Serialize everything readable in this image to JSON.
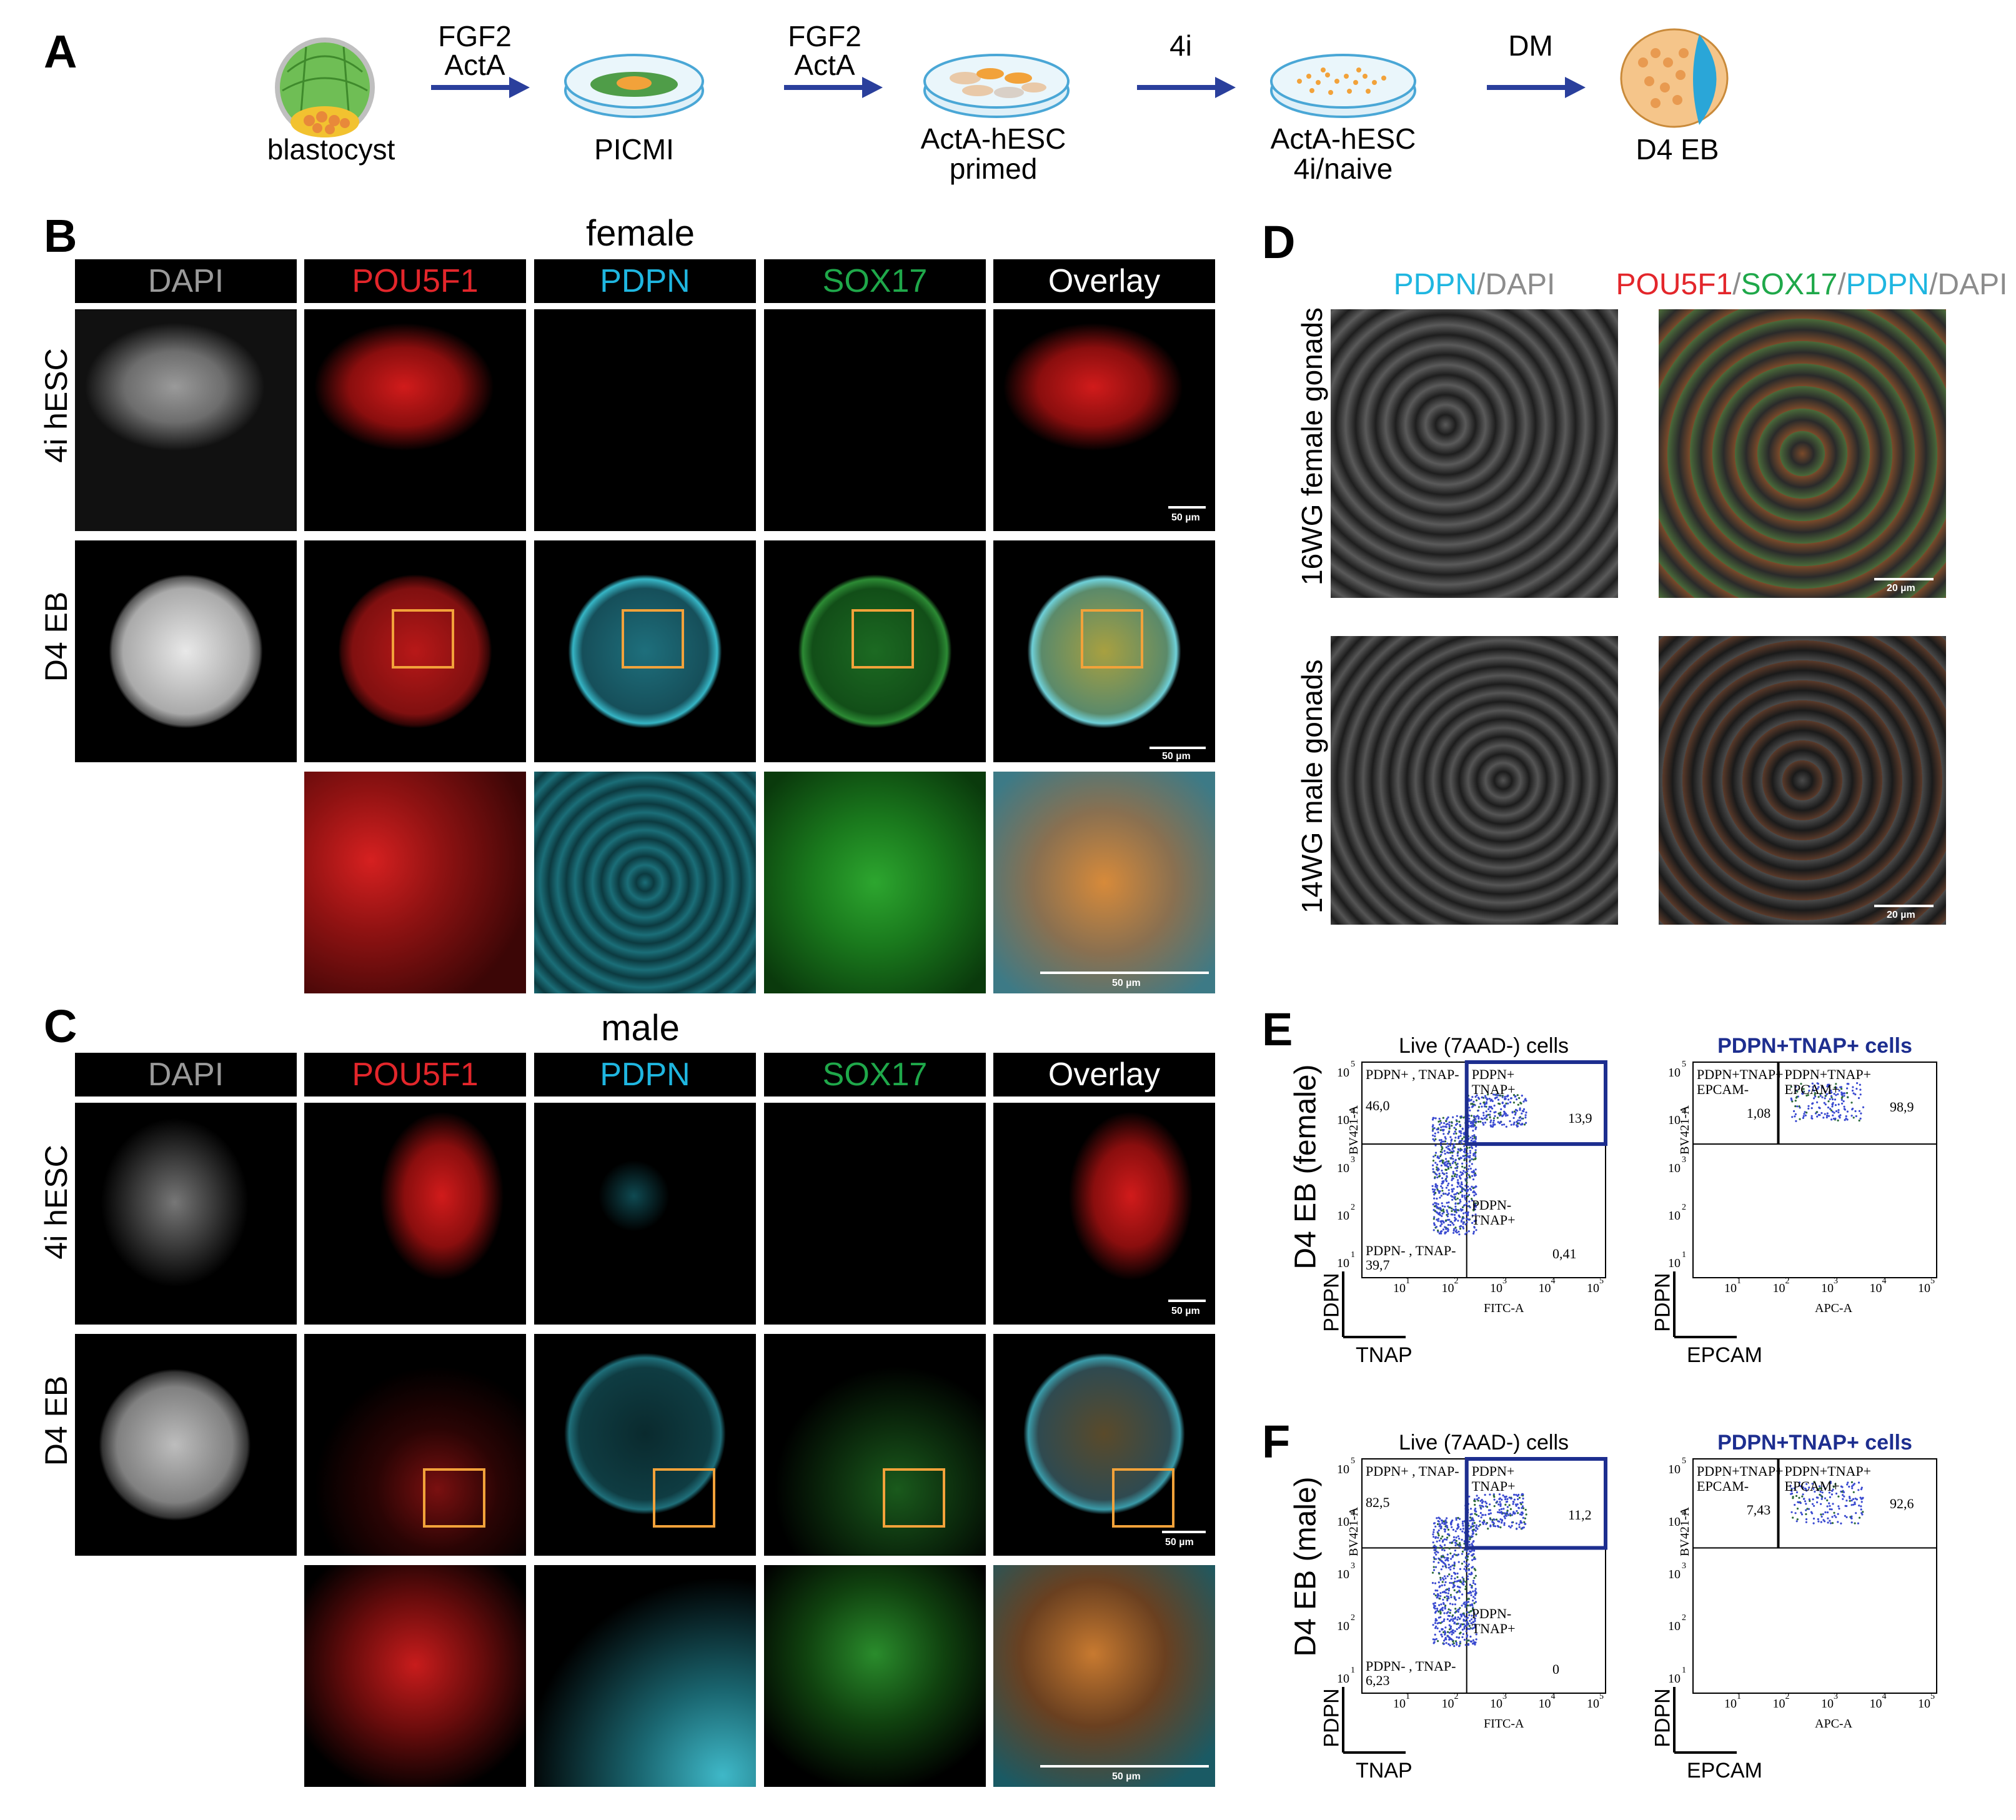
{
  "panel_letters": {
    "a": "A",
    "b": "B",
    "c": "C",
    "d": "D",
    "e": "E",
    "f": "F"
  },
  "panelA": {
    "steps": [
      "blastocyst",
      "PICMI",
      "ActA-hESC\nprimed",
      "ActA-hESC\n4i/naive",
      "D4 EB"
    ],
    "arrows": [
      "FGF2\nActA",
      "FGF2\nActA",
      "4i",
      "DM"
    ]
  },
  "panelB": {
    "title": "female",
    "columns": [
      "DAPI",
      "POU5F1",
      "PDPN",
      "SOX17",
      "Overlay"
    ],
    "rows": [
      "4i hESC",
      "D4 EB"
    ],
    "scale": "50 µm"
  },
  "panelC": {
    "title": "male",
    "columns": [
      "DAPI",
      "POU5F1",
      "PDPN",
      "SOX17",
      "Overlay"
    ],
    "rows": [
      "4i hESC",
      "D4 EB"
    ],
    "scale": "50 µm"
  },
  "panelD": {
    "col1": [
      {
        "t": "PDPN",
        "c": "#1fb6e0"
      },
      {
        "t": "/",
        "c": "#8c8c8c"
      },
      {
        "t": "DAPI",
        "c": "#8c8c8c"
      }
    ],
    "col2": [
      {
        "t": "POU5F1",
        "c": "#e3262b"
      },
      {
        "t": "/",
        "c": "#8c8c8c"
      },
      {
        "t": "SOX17",
        "c": "#1fa84a"
      },
      {
        "t": "/",
        "c": "#8c8c8c"
      },
      {
        "t": "PDPN",
        "c": "#1fb6e0"
      },
      {
        "t": "/",
        "c": "#8c8c8c"
      },
      {
        "t": "DAPI",
        "c": "#8c8c8c"
      }
    ],
    "rows": [
      "16WG female gonads",
      "14WG male gonads"
    ],
    "scale": "20 µm"
  },
  "panelE": {
    "row_label": "D4 EB (female)",
    "plot1": {
      "title": "Live (7AAD-) cells",
      "ylabel": "PDPN",
      "xlabel": "TNAP",
      "yaxis": "BV421-A",
      "xaxis": "FITC-A",
      "q_ul": "PDPN+ , TNAP-",
      "v_ul": "46,0",
      "q_ur": "PDPN+\nTNAP+",
      "v_ur": "13,9",
      "q_ll": "PDPN- , TNAP-",
      "v_ll": "39,7",
      "q_lr": "PDPN-\nTNAP+",
      "v_lr": "0,41"
    },
    "plot2": {
      "title": "PDPN+TNAP+ cells",
      "ylabel": "PDPN",
      "xlabel": "EPCAM",
      "yaxis": "BV421-A",
      "xaxis": "APC-A",
      "q_l": "PDPN+TNAP+\nEPCAM-",
      "v_l": "1,08",
      "q_r": "PDPN+TNAP+\nEPCAM+",
      "v_r": "98,9"
    }
  },
  "panelF": {
    "row_label": "D4 EB (male)",
    "plot1": {
      "title": "Live (7AAD-) cells",
      "ylabel": "PDPN",
      "xlabel": "TNAP",
      "yaxis": "BV421-A",
      "xaxis": "FITC-A",
      "q_ul": "PDPN+ , TNAP-",
      "v_ul": "82,5",
      "q_ur": "PDPN+\nTNAP+",
      "v_ur": "11,2",
      "q_ll": "PDPN- , TNAP-",
      "v_ll": "6,23",
      "q_lr": "PDPN-\nTNAP+",
      "v_lr": "0"
    },
    "plot2": {
      "title": "PDPN+TNAP+ cells",
      "ylabel": "PDPN",
      "xlabel": "EPCAM",
      "yaxis": "BV421-A",
      "xaxis": "APC-A",
      "q_l": "PDPN+TNAP+\nEPCAM-",
      "v_l": "7,43",
      "q_r": "PDPN+TNAP+\nEPCAM+",
      "v_r": "92,6"
    }
  },
  "ticks": [
    "10",
    "10",
    "10",
    "10",
    "10"
  ],
  "tick_exp": [
    "1",
    "2",
    "3",
    "4",
    "5"
  ],
  "colors": {
    "dapi": "#9a9a9a",
    "pou5f1": "#e3262b",
    "pdpn": "#1fb6e0",
    "sox17": "#1fa84a",
    "overlay": "#ffffff",
    "arrow": "#2a3f9c",
    "gate": "#1d2e8f",
    "zoom_box": "#f2a23a"
  }
}
